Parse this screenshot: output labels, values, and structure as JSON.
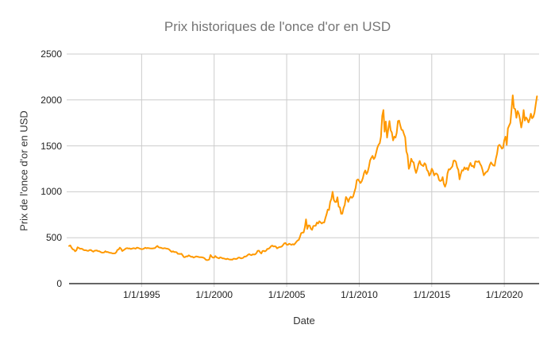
{
  "chart_data": {
    "type": "line",
    "title": "Prix historiques de l'once d'or en USD",
    "xlabel": "Date",
    "ylabel": "Prix de l'once d'or en USD",
    "ylim": [
      0,
      2500
    ],
    "y_ticks": [
      0,
      500,
      1000,
      1500,
      2000,
      2500
    ],
    "xlim_years": [
      1990.0,
      2022.4
    ],
    "x_ticks": [
      {
        "label": "1/1/1995",
        "year": 1995
      },
      {
        "label": "1/1/2000",
        "year": 2000
      },
      {
        "label": "1/1/2005",
        "year": 2005
      },
      {
        "label": "1/1/2010",
        "year": 2010
      },
      {
        "label": "1/1/2015",
        "year": 2015
      },
      {
        "label": "1/1/2020",
        "year": 2020
      }
    ],
    "grid": true,
    "legend_position": "none",
    "colors": {
      "series": "#FF9900",
      "gridline": "#CCCCCC",
      "baseline": "#333333",
      "title_text": "#757575",
      "tick_text": "#222222",
      "background": "#FFFFFF"
    },
    "series": [
      {
        "start_year": 1990.0,
        "step_months": 1,
        "color": "#FF9900",
        "values": [
          410,
          416,
          393,
          374,
          369,
          352,
          362,
          395,
          389,
          380,
          381,
          378,
          366,
          363,
          363,
          358,
          357,
          366,
          367,
          356,
          348,
          358,
          360,
          361,
          354,
          353,
          344,
          338,
          337,
          340,
          353,
          343,
          345,
          339,
          335,
          334,
          329,
          329,
          330,
          342,
          367,
          372,
          392,
          379,
          355,
          364,
          373,
          383,
          387,
          382,
          384,
          377,
          381,
          386,
          385,
          380,
          391,
          390,
          384,
          379,
          375,
          376,
          382,
          391,
          385,
          388,
          386,
          384,
          383,
          383,
          385,
          387,
          400,
          410,
          396,
          392,
          391,
          385,
          383,
          387,
          383,
          381,
          378,
          369,
          355,
          346,
          352,
          344,
          344,
          341,
          324,
          324,
          323,
          325,
          307,
          288,
          289,
          298,
          296,
          308,
          299,
          292,
          293,
          284,
          289,
          296,
          294,
          291,
          287,
          287,
          286,
          283,
          277,
          261,
          256,
          257,
          264,
          311,
          293,
          283,
          284,
          300,
          286,
          280,
          275,
          286,
          282,
          274,
          274,
          270,
          266,
          272,
          266,
          262,
          263,
          260,
          272,
          270,
          268,
          272,
          284,
          283,
          276,
          276,
          281,
          295,
          294,
          302,
          314,
          321,
          313,
          310,
          319,
          317,
          319,
          333,
          357,
          359,
          341,
          328,
          355,
          357,
          351,
          360,
          379,
          379,
          390,
          407,
          414,
          405,
          407,
          403,
          384,
          392,
          398,
          400,
          405,
          420,
          439,
          442,
          424,
          423,
          434,
          429,
          422,
          430,
          424,
          437,
          456,
          470,
          476,
          510,
          550,
          555,
          557,
          611,
          700,
          596,
          634,
          632,
          598,
          586,
          627,
          630,
          631,
          665,
          655,
          679,
          667,
          655,
          665,
          665,
          713,
          755,
          806,
          803,
          890,
          922,
          1000,
          910,
          889,
          889,
          940,
          839,
          830,
          760,
          761,
          820,
          858,
          943,
          924,
          890,
          929,
          946,
          934,
          949,
          997,
          1043,
          1127,
          1135,
          1118,
          1095,
          1113,
          1149,
          1205,
          1233,
          1193,
          1216,
          1271,
          1342,
          1370,
          1391,
          1356,
          1373,
          1424,
          1480,
          1513,
          1529,
          1600,
          1827,
          1890,
          1655,
          1765,
          1590,
          1680,
          1770,
          1670,
          1645,
          1560,
          1600,
          1590,
          1640,
          1770,
          1775,
          1720,
          1675,
          1671,
          1628,
          1593,
          1440,
          1400,
          1250,
          1285,
          1360,
          1330,
          1320,
          1250,
          1205,
          1244,
          1301,
          1336,
          1298,
          1289,
          1279,
          1311,
          1296,
          1238,
          1222,
          1176,
          1200,
          1251,
          1227,
          1178,
          1198,
          1198,
          1181,
          1130,
          1117,
          1124,
          1159,
          1086,
          1055,
          1097,
          1200,
          1245,
          1242,
          1260,
          1276,
          1337,
          1340,
          1326,
          1266,
          1238,
          1135,
          1192,
          1234,
          1231,
          1266,
          1246,
          1260,
          1236,
          1283,
          1314,
          1280,
          1281,
          1264,
          1331,
          1330,
          1325,
          1334,
          1303,
          1281,
          1238,
          1180,
          1198,
          1215,
          1221,
          1250,
          1292,
          1320,
          1301,
          1286,
          1284,
          1359,
          1413,
          1500,
          1511,
          1495,
          1471,
          1479,
          1561,
          1600,
          1510,
          1690,
          1720,
          1750,
          1900,
          2050,
          1910,
          1900,
          1805,
          1880,
          1850,
          1790,
          1700,
          1770,
          1890,
          1775,
          1810,
          1790,
          1755,
          1790,
          1850,
          1800,
          1815,
          1860,
          1950,
          2040
        ]
      }
    ]
  }
}
